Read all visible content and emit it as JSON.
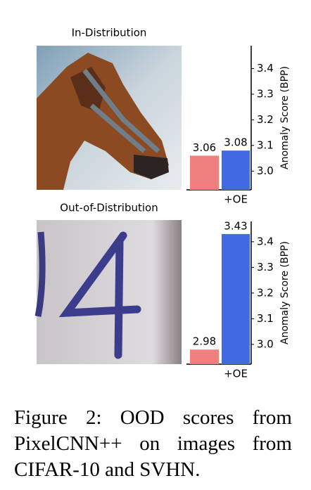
{
  "chart_data": [
    {
      "type": "bar",
      "title": "In-Distribution",
      "categories": [
        null,
        "+OE"
      ],
      "values": [
        3.06,
        3.08
      ],
      "colors": [
        "#f08080",
        "#4169e1"
      ],
      "ylim": [
        2.927,
        3.489
      ],
      "yticks": [
        {
          "value": 3,
          "label": "3.0"
        },
        3.1,
        3.2,
        3.3,
        3.4
      ],
      "ylabel": "Anomaly Score (BPP)"
    },
    {
      "type": "bar",
      "title": "Out-of-Distribution",
      "categories": [
        null,
        "+OE"
      ],
      "values": [
        2.98,
        3.43
      ],
      "colors": [
        "#f08080",
        "#4169e1"
      ],
      "ylim": [
        2.923,
        3.479
      ],
      "yticks": [
        {
          "value": 3,
          "label": "3.0"
        },
        3.1,
        3.2,
        3.3,
        3.4
      ],
      "ylabel": "Anomaly Score (BPP)"
    }
  ],
  "caption": "Figure 2: OOD scores from PixelCNN++ on images from CIFAR-10 and SVHN."
}
